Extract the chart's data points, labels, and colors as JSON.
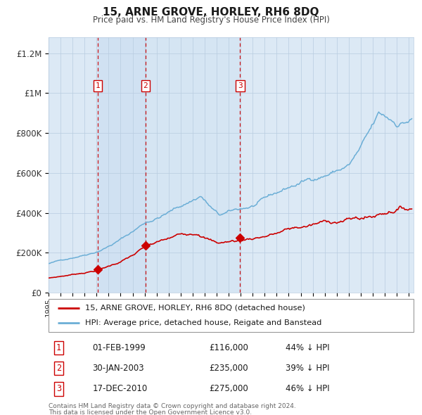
{
  "title": "15, ARNE GROVE, HORLEY, RH6 8DQ",
  "subtitle": "Price paid vs. HM Land Registry's House Price Index (HPI)",
  "legend_line1": "15, ARNE GROVE, HORLEY, RH6 8DQ (detached house)",
  "legend_line2": "HPI: Average price, detached house, Reigate and Banstead",
  "footnote1": "Contains HM Land Registry data © Crown copyright and database right 2024.",
  "footnote2": "This data is licensed under the Open Government Licence v3.0.",
  "sale_labels": [
    {
      "num": "1",
      "date": "01-FEB-1999",
      "price": "£116,000",
      "hpi": "44% ↓ HPI",
      "year": 1999.08,
      "value": 116000
    },
    {
      "num": "2",
      "date": "30-JAN-2003",
      "price": "£235,000",
      "hpi": "39% ↓ HPI",
      "year": 2003.08,
      "value": 235000
    },
    {
      "num": "3",
      "date": "17-DEC-2010",
      "price": "£275,000",
      "hpi": "46% ↓ HPI",
      "year": 2010.96,
      "value": 275000
    }
  ],
  "hpi_color": "#6baed6",
  "sale_color": "#cc0000",
  "bg_color": "#dce9f5",
  "grid_color": "#b8cce0",
  "vline_color": "#cc0000",
  "label_box_color": "#cc0000",
  "yticks": [
    0,
    200000,
    400000,
    600000,
    800000,
    1000000,
    1200000
  ],
  "ylabels": [
    "£0",
    "£200K",
    "£400K",
    "£600K",
    "£800K",
    "£1M",
    "£1.2M"
  ],
  "ylim_max": 1280000,
  "xlim_start": 1995.0,
  "xlim_end": 2025.4
}
